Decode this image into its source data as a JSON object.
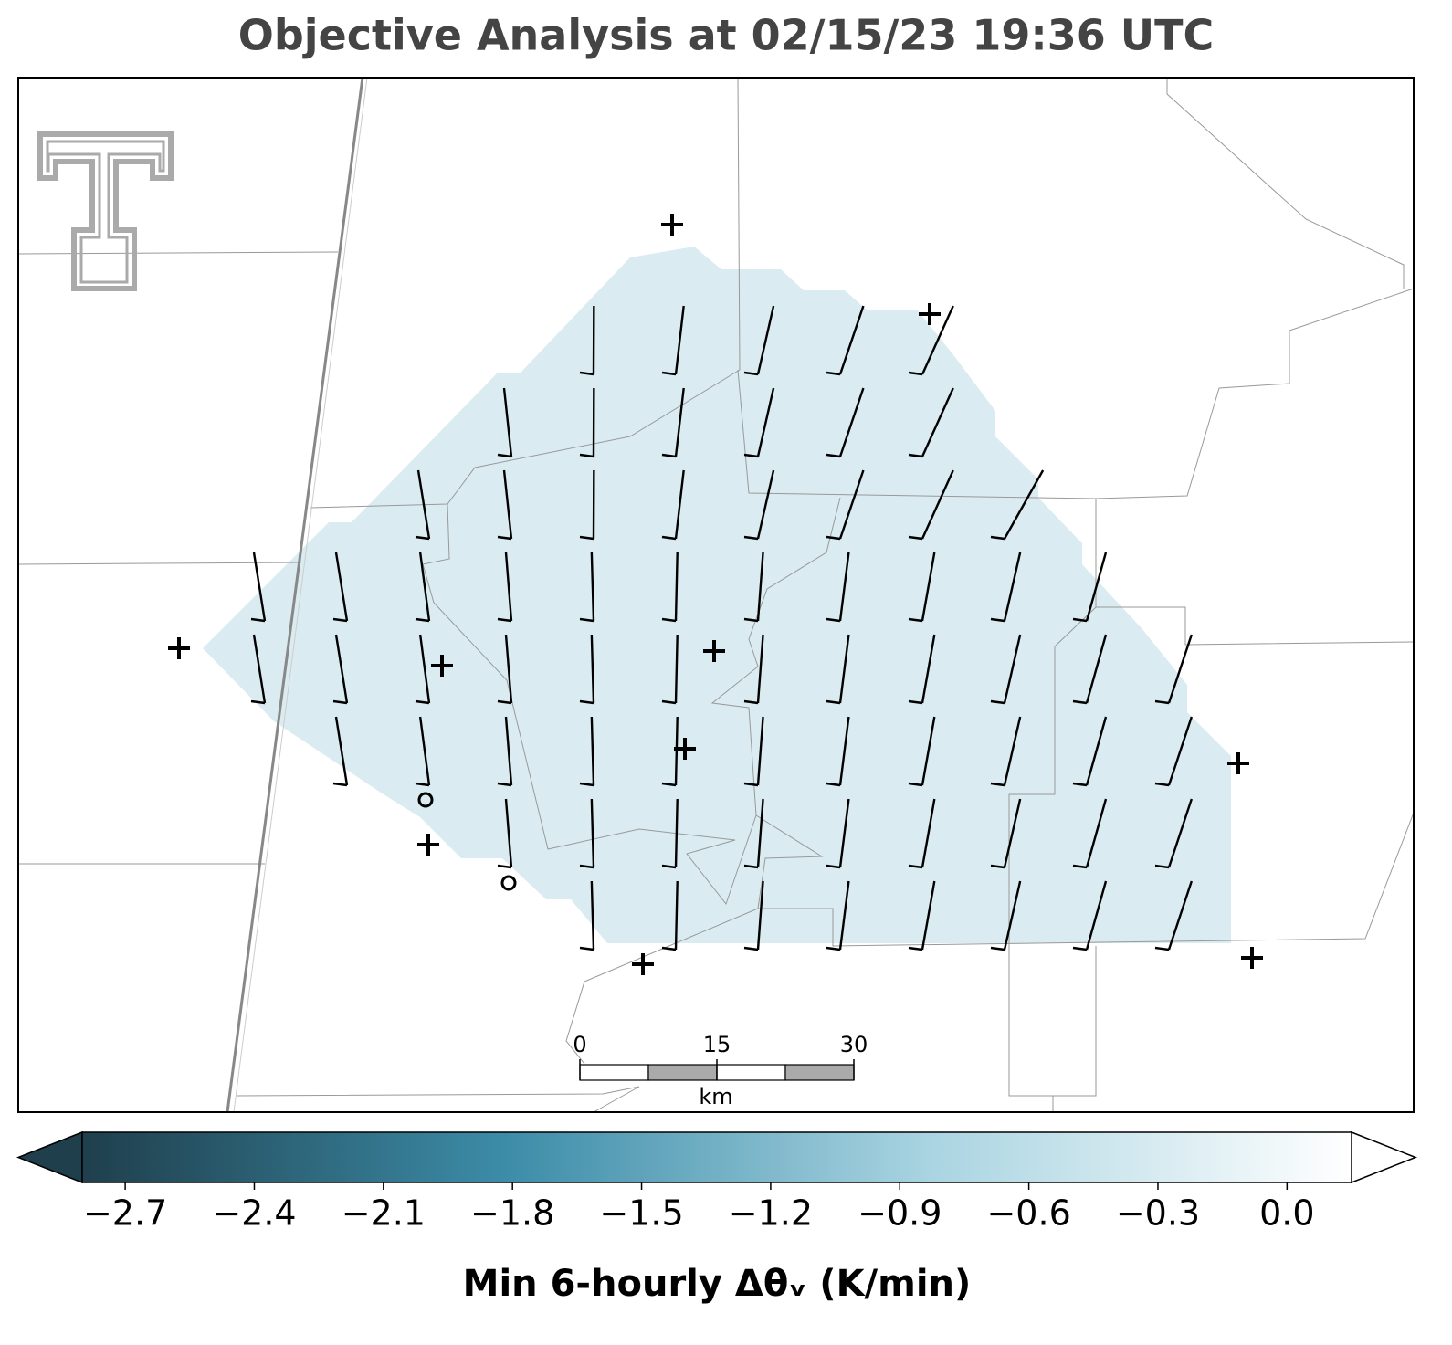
{
  "title": "Objective Analysis at 02/15/23 19:36 UTC",
  "colorbar": {
    "label": "Min 6-hourly Δθᵥ (K/min)",
    "clim": [
      -2.8,
      0.15
    ],
    "colors": [
      "#1f3f4c",
      "#3c8ca8",
      "#a9d4e1",
      "#ffffff"
    ],
    "ticks": [
      {
        "value": -2.7,
        "label": "−2.7"
      },
      {
        "value": -2.4,
        "label": "−2.4"
      },
      {
        "value": -2.1,
        "label": "−2.1"
      },
      {
        "value": -1.8,
        "label": "−1.8"
      },
      {
        "value": -1.5,
        "label": "−1.5"
      },
      {
        "value": -1.2,
        "label": "−1.2"
      },
      {
        "value": -0.9,
        "label": "−0.9"
      },
      {
        "value": -0.6,
        "label": "−0.6"
      },
      {
        "value": -0.3,
        "label": "−0.3"
      },
      {
        "value": 0,
        "label": "0.0"
      }
    ]
  },
  "scale_bar": {
    "ticks": [
      0,
      15,
      30
    ],
    "unit": "km"
  }
}
